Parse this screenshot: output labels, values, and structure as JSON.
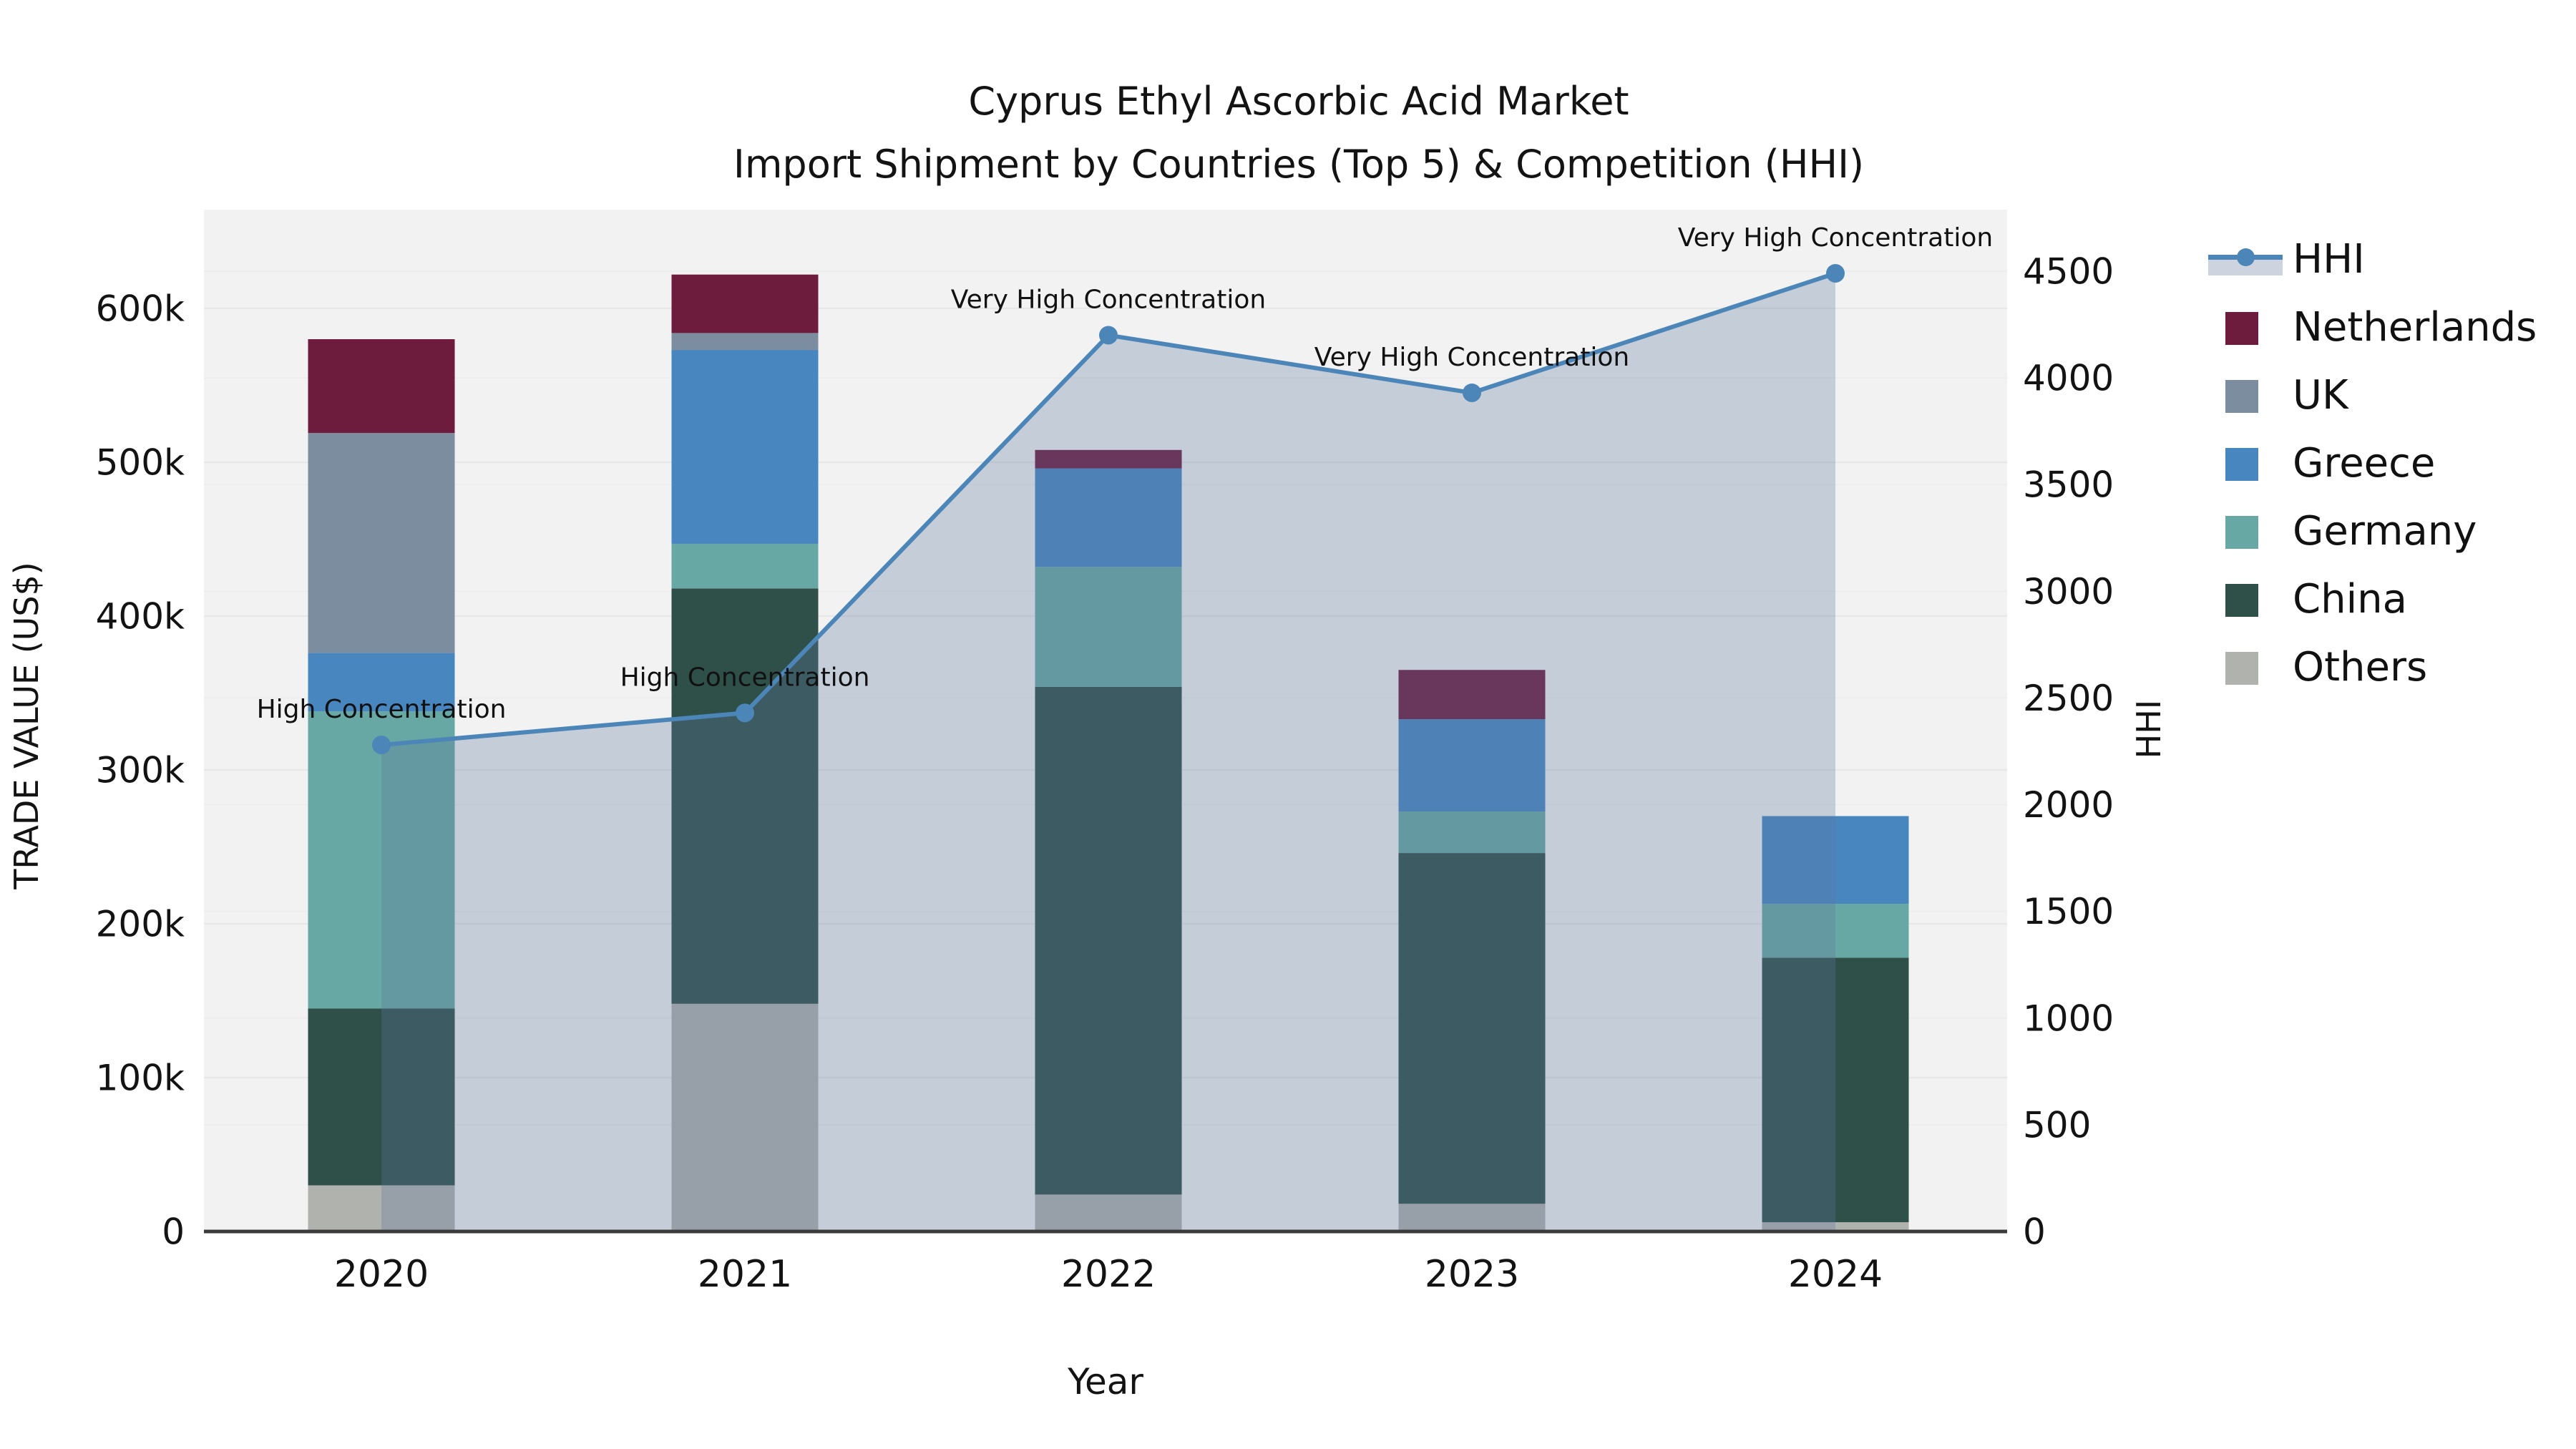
{
  "title": {
    "line1": "Cyprus Ethyl Ascorbic Acid Market",
    "line2": "Import Shipment by Countries (Top 5) & Competition (HHI)"
  },
  "axes": {
    "x_label": "Year",
    "y_left_label": "TRADE VALUE (US$)",
    "y_right_label": "HHI",
    "y_left_ticks": [
      "0",
      "100k",
      "200k",
      "300k",
      "400k",
      "500k",
      "600k"
    ],
    "y_right_ticks": [
      "0",
      "500",
      "1000",
      "1500",
      "2000",
      "2500",
      "3000",
      "3500",
      "4000",
      "4500"
    ]
  },
  "legend": {
    "items": [
      {
        "label": "HHI",
        "type": "line",
        "color": "#4C86B8",
        "fill": "#CDD4DF"
      },
      {
        "label": "Netherlands",
        "type": "patch",
        "color": "#6E1C3E"
      },
      {
        "label": "UK",
        "type": "patch",
        "color": "#7C8DA0"
      },
      {
        "label": "Greece",
        "type": "patch",
        "color": "#4886BF"
      },
      {
        "label": "Germany",
        "type": "patch",
        "color": "#67A8A4"
      },
      {
        "label": "China",
        "type": "patch",
        "color": "#2F4F49"
      },
      {
        "label": "Others",
        "type": "patch",
        "color": "#B0B2AE"
      }
    ]
  },
  "chart_data": {
    "type": "bar",
    "subtype": "stacked-bars-with-hhi-line-overlay",
    "title": "Cyprus Ethyl Ascorbic Acid Market",
    "subtitle": "Import Shipment by Countries (Top 5) & Competition (HHI)",
    "xlabel": "Year",
    "ylabel_left": "TRADE VALUE (US$)",
    "ylabel_right": "HHI",
    "categories": [
      "2020",
      "2021",
      "2022",
      "2023",
      "2024"
    ],
    "unit": "US$ thousands (k)",
    "stack_order_bottom_to_top": [
      "Others",
      "China",
      "Germany",
      "Greece",
      "UK",
      "Netherlands"
    ],
    "series": [
      {
        "name": "Others",
        "color": "#B0B2AE",
        "values_k": [
          30,
          148,
          24,
          18,
          6
        ]
      },
      {
        "name": "China",
        "color": "#2F4F49",
        "values_k": [
          115,
          270,
          330,
          228,
          172
        ]
      },
      {
        "name": "Germany",
        "color": "#67A8A4",
        "values_k": [
          193,
          29,
          78,
          27,
          35
        ]
      },
      {
        "name": "Greece",
        "color": "#4886BF",
        "values_k": [
          38,
          126,
          64,
          60,
          57
        ]
      },
      {
        "name": "UK",
        "color": "#7C8DA0",
        "values_k": [
          143,
          11,
          0,
          0,
          0
        ]
      },
      {
        "name": "Netherlands",
        "color": "#6E1C3E",
        "values_k": [
          61,
          38,
          12,
          32,
          0
        ]
      }
    ],
    "totals_k": [
      580,
      622,
      508,
      365,
      270
    ],
    "line_series": {
      "name": "HHI",
      "axis": "right",
      "color": "#4C86B8",
      "area_fill": "rgba(93,118,160,0.30)",
      "values": [
        2280,
        2430,
        4200,
        3930,
        4490
      ]
    },
    "annotations": [
      {
        "x": "2020",
        "text": "High Concentration"
      },
      {
        "x": "2021",
        "text": "High Concentration"
      },
      {
        "x": "2022",
        "text": "Very High Concentration"
      },
      {
        "x": "2023",
        "text": "Very High Concentration"
      },
      {
        "x": "2024",
        "text": "Very High Concentration"
      }
    ],
    "y_left_axis": {
      "min": 0,
      "max_k": 600,
      "tick_step_k": 100,
      "tick_labels": [
        "0",
        "100k",
        "200k",
        "300k",
        "400k",
        "500k",
        "600k"
      ]
    },
    "y_right_axis": {
      "min": 0,
      "max": 4500,
      "tick_step": 500,
      "tick_labels": [
        "0",
        "500",
        "1000",
        "1500",
        "2000",
        "2500",
        "3000",
        "3500",
        "4000",
        "4500"
      ]
    },
    "grid": true,
    "legend_position": "right",
    "plot_background": "#F2F2F2",
    "gridline_color": "#E7E7E7",
    "axis_line_color": "#3B3B3B",
    "text_color": "#131313"
  }
}
